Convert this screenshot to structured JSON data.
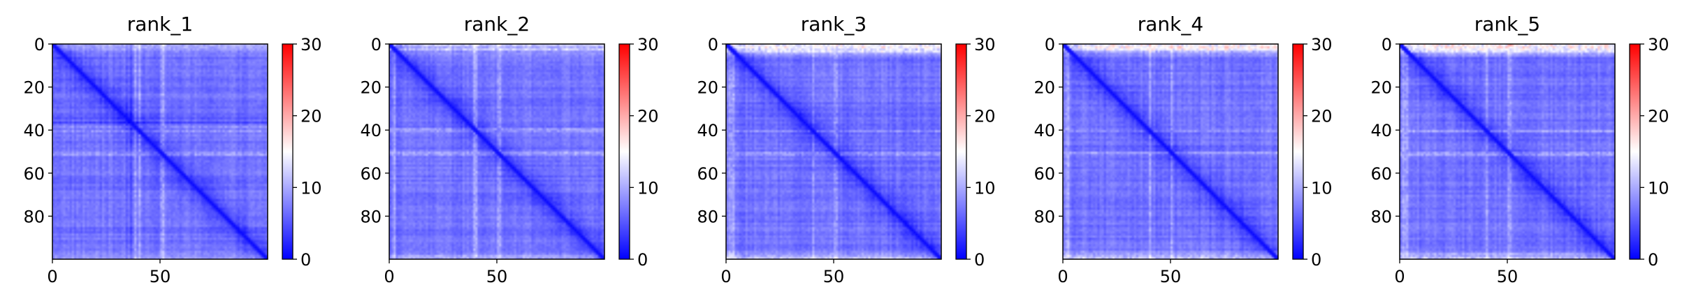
{
  "chart_data": [
    {
      "type": "heatmap",
      "title": "rank_1",
      "x_ticks": [
        0,
        50
      ],
      "y_ticks": [
        0,
        20,
        40,
        60,
        80
      ],
      "xlim": [
        0,
        100
      ],
      "ylim": [
        100,
        0
      ],
      "matrix_size": 100,
      "colormap": "bwr",
      "colorbar": {
        "min": 0,
        "max": 30,
        "ticks": [
          0,
          10,
          20,
          30
        ]
      },
      "dark_rows": [
        34,
        36
      ],
      "light_rows": [
        38,
        40,
        50,
        51
      ],
      "top_band_intensity": 0.35,
      "bottom_band_intensity": 0.3
    },
    {
      "type": "heatmap",
      "title": "rank_2",
      "x_ticks": [
        0,
        50
      ],
      "y_ticks": [
        0,
        20,
        40,
        60,
        80
      ],
      "xlim": [
        0,
        100
      ],
      "ylim": [
        100,
        0
      ],
      "matrix_size": 100,
      "colormap": "bwr",
      "colorbar": {
        "min": 0,
        "max": 30,
        "ticks": [
          0,
          10,
          20,
          30
        ]
      },
      "dark_rows": [],
      "light_rows": [
        2,
        39,
        40,
        50,
        51
      ],
      "top_band_intensity": 0.5,
      "bottom_band_intensity": 0.45
    },
    {
      "type": "heatmap",
      "title": "rank_3",
      "x_ticks": [
        0,
        50
      ],
      "y_ticks": [
        0,
        20,
        40,
        60,
        80
      ],
      "xlim": [
        0,
        100
      ],
      "ylim": [
        100,
        0
      ],
      "matrix_size": 100,
      "colormap": "bwr",
      "colorbar": {
        "min": 0,
        "max": 30,
        "ticks": [
          0,
          10,
          20,
          30
        ]
      },
      "dark_rows": [],
      "light_rows": [
        1,
        2,
        3,
        40,
        50,
        51
      ],
      "top_band_intensity": 0.75,
      "bottom_band_intensity": 0.6
    },
    {
      "type": "heatmap",
      "title": "rank_4",
      "x_ticks": [
        0,
        50
      ],
      "y_ticks": [
        0,
        20,
        40,
        60,
        80
      ],
      "xlim": [
        0,
        100
      ],
      "ylim": [
        100,
        0
      ],
      "matrix_size": 100,
      "colormap": "bwr",
      "colorbar": {
        "min": 0,
        "max": 30,
        "ticks": [
          0,
          10,
          20,
          30
        ]
      },
      "dark_rows": [],
      "light_rows": [
        1,
        2,
        40,
        50
      ],
      "top_band_intensity": 0.8,
      "bottom_band_intensity": 0.65
    },
    {
      "type": "heatmap",
      "title": "rank_5",
      "x_ticks": [
        0,
        50
      ],
      "y_ticks": [
        0,
        20,
        40,
        60,
        80
      ],
      "xlim": [
        0,
        100
      ],
      "ylim": [
        100,
        0
      ],
      "matrix_size": 100,
      "colormap": "bwr",
      "colorbar": {
        "min": 0,
        "max": 30,
        "ticks": [
          0,
          10,
          20,
          30
        ]
      },
      "dark_rows": [],
      "light_rows": [
        1,
        2,
        3,
        40,
        50,
        51
      ],
      "top_band_intensity": 0.9,
      "bottom_band_intensity": 0.7
    }
  ]
}
